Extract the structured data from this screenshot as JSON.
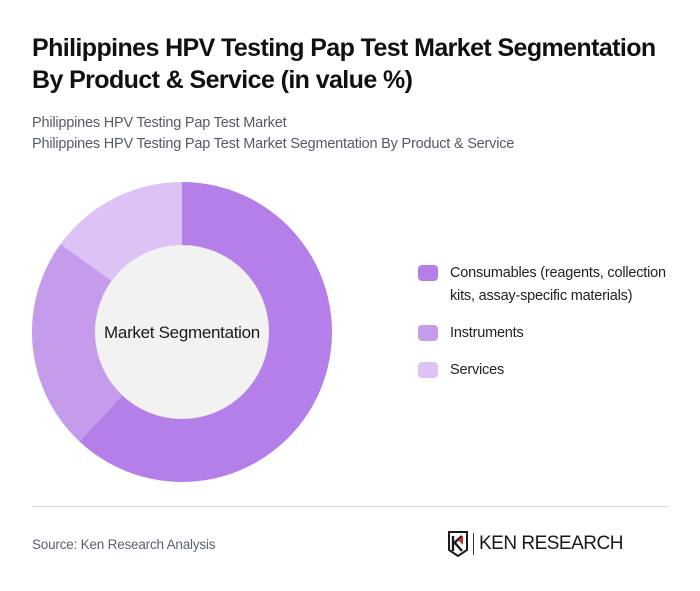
{
  "header": {
    "title": "Philippines HPV Testing Pap Test Market Segmentation By Product & Service (in value %)",
    "subtitle_line1": "Philippines HPV Testing Pap Test Market",
    "subtitle_line2": "Philippines HPV Testing Pap Test Market Segmentation By Product & Service"
  },
  "donut": {
    "center_label": "Market Segmentation",
    "center_color": "#F2F2F2"
  },
  "legend": [
    {
      "label": "Consumables (reagents, collection kits, assay-specific materials)",
      "color": "#B47FE8"
    },
    {
      "label": "Instruments",
      "color": "#C59CEC"
    },
    {
      "label": "Services",
      "color": "#DCC2F5"
    }
  ],
  "footer": {
    "source": "Source: Ken Research Analysis",
    "logo_text": "KEN RESEARCH"
  },
  "chart_data": {
    "type": "pie",
    "subtype": "donut",
    "title": "Philippines HPV Testing Pap Test Market Segmentation By Product & Service (in value %)",
    "subtitle": "Philippines HPV Testing Pap Test Market Segmentation By Product & Service",
    "center_label": "Market Segmentation",
    "categories": [
      "Consumables (reagents, collection kits, assay-specific materials)",
      "Instruments",
      "Services"
    ],
    "values": [
      62,
      23,
      15
    ],
    "colors": [
      "#B47FE8",
      "#C59CEC",
      "#DCC2F5"
    ],
    "unit": "%",
    "legend_position": "right",
    "start_angle": "12 o'clock, clockwise"
  }
}
